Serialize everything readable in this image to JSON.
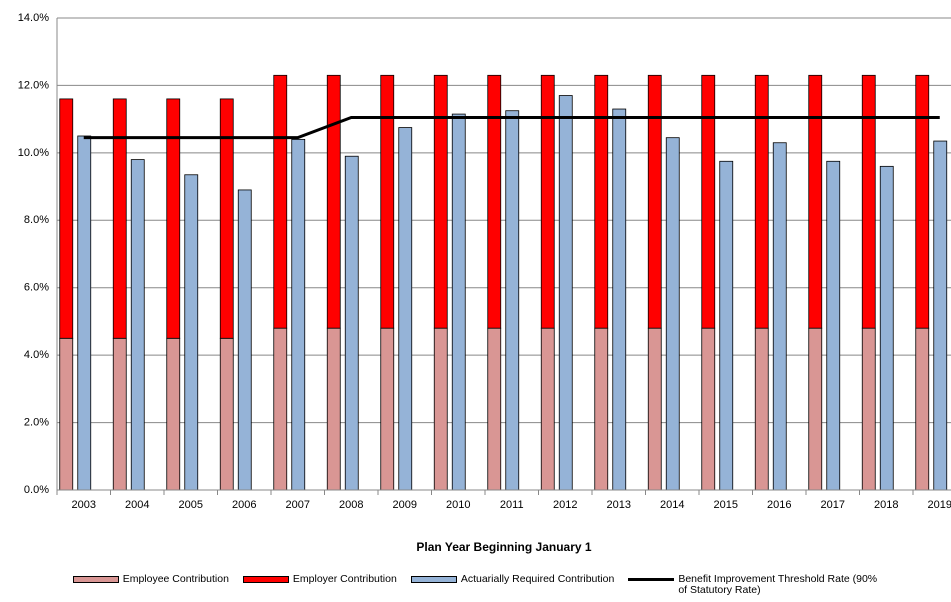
{
  "chart_data": {
    "type": "bar",
    "x_label": "Plan Year Beginning January 1",
    "categories": [
      "2003",
      "2004",
      "2005",
      "2006",
      "2007",
      "2008",
      "2009",
      "2010",
      "2011",
      "2012",
      "2013",
      "2014",
      "2015",
      "2016",
      "2017",
      "2018",
      "2019"
    ],
    "series": [
      {
        "name": "Employee Contribution",
        "color": "#d99694",
        "kind": "stack",
        "values": [
          4.5,
          4.5,
          4.5,
          4.5,
          4.8,
          4.8,
          4.8,
          4.8,
          4.8,
          4.8,
          4.8,
          4.8,
          4.8,
          4.8,
          4.8,
          4.8,
          4.8
        ]
      },
      {
        "name": "Employer Contribution",
        "color": "#ff0000",
        "kind": "stack",
        "values": [
          7.1,
          7.1,
          7.1,
          7.1,
          7.5,
          7.5,
          7.5,
          7.5,
          7.5,
          7.5,
          7.5,
          7.5,
          7.5,
          7.5,
          7.5,
          7.5,
          7.5
        ]
      },
      {
        "name": "Actuarially Required Contribution",
        "color": "#95b3d7",
        "kind": "bar",
        "values": [
          10.5,
          9.8,
          9.35,
          8.9,
          10.4,
          9.9,
          10.75,
          11.15,
          11.25,
          11.7,
          11.3,
          10.45,
          9.75,
          10.3,
          9.75,
          9.6,
          10.35
        ]
      },
      {
        "name": "Benefit Improvement Threshold Rate (90% of Statutory Rate)",
        "color": "#000000",
        "kind": "line",
        "values": [
          10.45,
          10.45,
          10.45,
          10.45,
          10.45,
          11.05,
          11.05,
          11.05,
          11.05,
          11.05,
          11.05,
          11.05,
          11.05,
          11.05,
          11.05,
          11.05,
          11.05
        ]
      }
    ],
    "ylim": [
      0,
      14
    ],
    "yticks": [
      {
        "value": 0,
        "label": "0.0%"
      },
      {
        "value": 2,
        "label": "2.0%"
      },
      {
        "value": 4,
        "label": "4.0%"
      },
      {
        "value": 6,
        "label": "6.0%"
      },
      {
        "value": 8,
        "label": "8.0%"
      },
      {
        "value": 10,
        "label": "10.0%"
      },
      {
        "value": 12,
        "label": "12.0%"
      },
      {
        "value": 14,
        "label": "14.0%"
      }
    ],
    "grid": true
  }
}
